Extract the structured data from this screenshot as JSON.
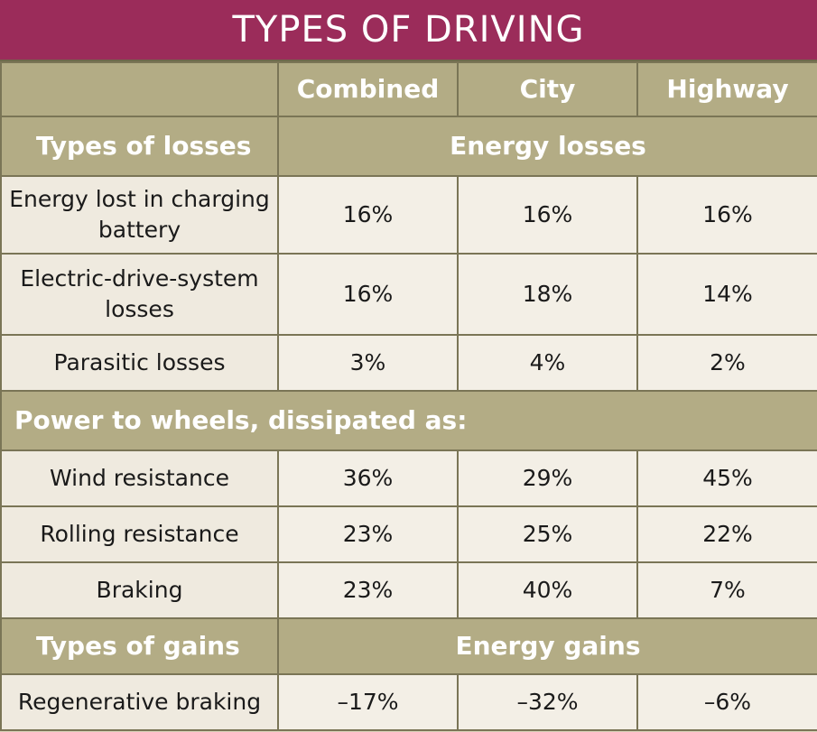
{
  "title": "TYPES OF DRIVING",
  "columns": [
    "",
    "Combined",
    "City",
    "Highway"
  ],
  "losses_header": {
    "label": "Types of losses",
    "span": "Energy losses"
  },
  "losses_rows": [
    {
      "label": "Energy lost in charging battery",
      "values": [
        "16%",
        "16%",
        "16%"
      ]
    },
    {
      "label": "Electric-drive-system losses",
      "values": [
        "16%",
        "18%",
        "14%"
      ]
    },
    {
      "label": "Parasitic losses",
      "values": [
        "3%",
        "4%",
        "2%"
      ]
    }
  ],
  "wheels_section": "Power to wheels, dissipated as:",
  "wheels_rows": [
    {
      "label": "Wind resistance",
      "values": [
        "36%",
        "29%",
        "45%"
      ]
    },
    {
      "label": "Rolling resistance",
      "values": [
        "23%",
        "25%",
        "22%"
      ]
    },
    {
      "label": "Braking",
      "values": [
        "23%",
        "40%",
        "7%"
      ]
    }
  ],
  "gains_header": {
    "label": "Types of gains",
    "span": "Energy gains"
  },
  "gains_rows": [
    {
      "label": "Regenerative braking",
      "values": [
        "–17%",
        "–32%",
        "–6%"
      ]
    }
  ],
  "colors": {
    "title_bg": "#9b2c5a",
    "header_bg": "#b3ac85",
    "cell_bg": "#f3efe6",
    "border": "#7a7556"
  }
}
